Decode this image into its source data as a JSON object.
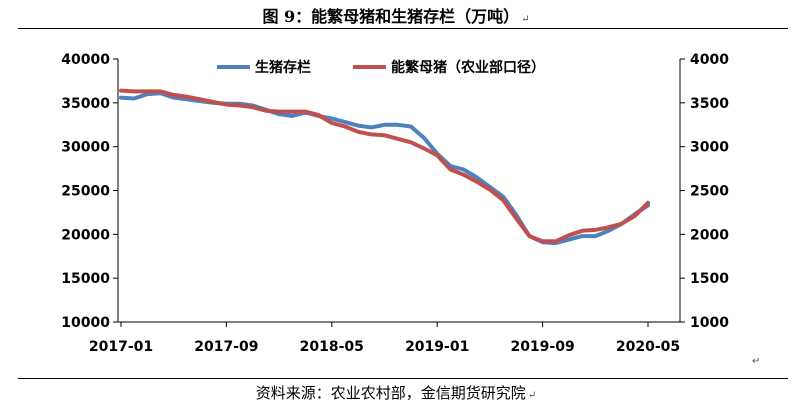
{
  "title": "图 9：能繁母猪和生猪存栏（万吨）",
  "source": "资料来源：农业农村部，金信期货研究院",
  "paragraph_mark": "↵",
  "colors": {
    "blue": "#4F81BD",
    "red": "#C0504D"
  },
  "chart_data": {
    "type": "line",
    "title": "",
    "xlabel": "",
    "ylabel": "",
    "x_ticks": [
      "2017-01",
      "2017-09",
      "2018-05",
      "2019-01",
      "2019-09",
      "2020-05"
    ],
    "y_left_ticks": [
      "40000",
      "35000",
      "30000",
      "25000",
      "20000",
      "15000",
      "10000"
    ],
    "y_right_ticks": [
      "4000",
      "3500",
      "3000",
      "2500",
      "2000",
      "1500",
      "1000"
    ],
    "ylim_left": [
      10000,
      40000
    ],
    "ylim_right": [
      1000,
      4000
    ],
    "grid": false,
    "legend_position": "top",
    "x": [
      "2017-01",
      "2017-02",
      "2017-03",
      "2017-04",
      "2017-05",
      "2017-06",
      "2017-07",
      "2017-08",
      "2017-09",
      "2017-10",
      "2017-11",
      "2017-12",
      "2018-01",
      "2018-02",
      "2018-03",
      "2018-04",
      "2018-05",
      "2018-06",
      "2018-07",
      "2018-08",
      "2018-09",
      "2018-10",
      "2018-11",
      "2018-12",
      "2019-01",
      "2019-02",
      "2019-03",
      "2019-04",
      "2019-05",
      "2019-06",
      "2019-07",
      "2019-08",
      "2019-09",
      "2019-10",
      "2019-11",
      "2019-12",
      "2020-01",
      "2020-02",
      "2020-03",
      "2020-04",
      "2020-05"
    ],
    "series": [
      {
        "name": "生猪存栏",
        "axis": "left",
        "color": "#4F81BD",
        "values": [
          35600,
          35500,
          36000,
          36100,
          35600,
          35400,
          35200,
          35000,
          34900,
          34900,
          34700,
          34200,
          33700,
          33500,
          33900,
          33500,
          33200,
          32800,
          32400,
          32200,
          32500,
          32500,
          32300,
          31000,
          29200,
          27800,
          27400,
          26500,
          25400,
          24300,
          22200,
          19800,
          19100,
          19000,
          19400,
          19800,
          19800,
          20400,
          21200,
          22300,
          23300
        ]
      },
      {
        "name": "能繁母猪（农业部口径）",
        "axis": "right",
        "color": "#C0504D",
        "values": [
          3640,
          3630,
          3630,
          3630,
          3590,
          3570,
          3540,
          3510,
          3480,
          3470,
          3450,
          3410,
          3400,
          3400,
          3400,
          3360,
          3270,
          3230,
          3170,
          3140,
          3130,
          3090,
          3050,
          2980,
          2900,
          2740,
          2680,
          2600,
          2510,
          2390,
          2180,
          1980,
          1920,
          1920,
          1990,
          2040,
          2050,
          2080,
          2120,
          2210,
          2360
        ]
      }
    ]
  }
}
